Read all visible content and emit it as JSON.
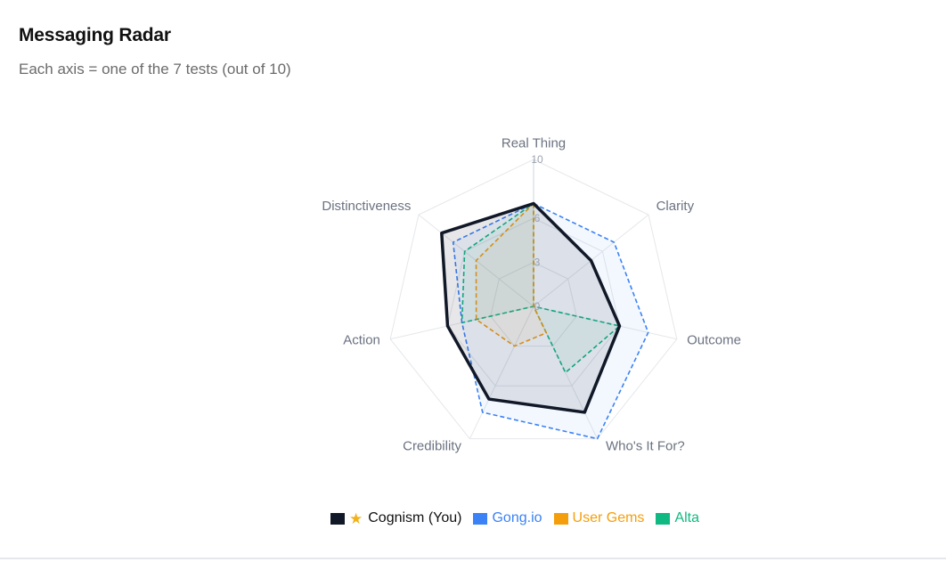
{
  "header": {
    "title": "Messaging Radar",
    "subtitle": "Each axis = one of the 7 tests (out of 10)"
  },
  "chart_data": {
    "type": "radar",
    "axes": [
      "Real Thing",
      "Clarity",
      "Outcome",
      "Who's It For?",
      "Credibility",
      "Action",
      "Distinctiveness"
    ],
    "rlim": [
      0,
      10
    ],
    "tick_labels": [
      "0",
      "3",
      "6",
      "10"
    ],
    "ticks": [
      0,
      3,
      6,
      10
    ],
    "grid": true,
    "legend_position": "bottom",
    "series": [
      {
        "name": "Cognism (You)",
        "icon": "star-icon",
        "color": "#111827",
        "line": "solid",
        "values": [
          7,
          5,
          6,
          8,
          7,
          6,
          8
        ]
      },
      {
        "name": "Gong.io",
        "color": "#3b82f6",
        "line": "dashed",
        "values": [
          7,
          7,
          8,
          10,
          8,
          5,
          7
        ]
      },
      {
        "name": "User Gems",
        "color": "#f59e0b",
        "line": "dashed",
        "values": [
          7,
          0,
          0,
          2,
          3,
          4,
          5
        ]
      },
      {
        "name": "Alta",
        "color": "#10b981",
        "line": "dashed",
        "values": [
          7,
          0,
          6,
          5,
          0,
          5,
          6
        ]
      }
    ]
  }
}
